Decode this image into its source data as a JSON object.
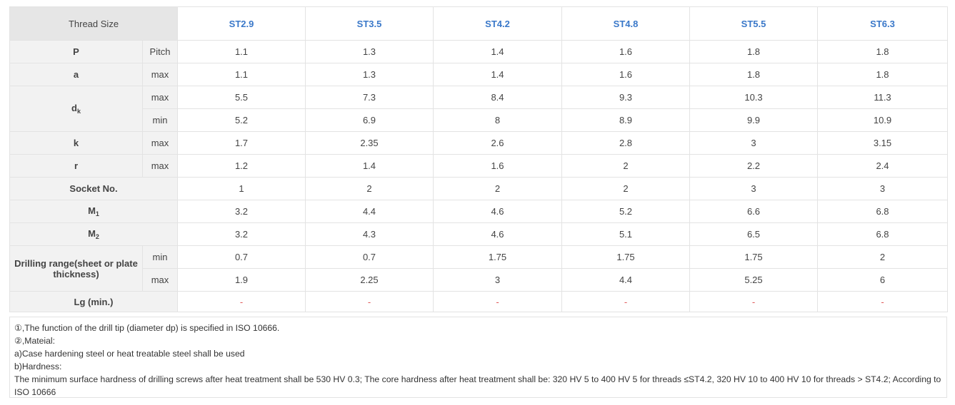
{
  "colors": {
    "header_link": "#3a78c9",
    "dash": "#e05a5a",
    "label_bg": "#f2f2f2",
    "thread_bg": "#e6e6e6",
    "border": "#e3e3e3"
  },
  "header": {
    "thread_size_label": "Thread Size",
    "columns": [
      "ST2.9",
      "ST3.5",
      "ST4.2",
      "ST4.8",
      "ST5.5",
      "ST6.3"
    ]
  },
  "rows": {
    "P": {
      "label": "P",
      "qualifier": "Pitch",
      "values": [
        "1.1",
        "1.3",
        "1.4",
        "1.6",
        "1.8",
        "1.8"
      ]
    },
    "a": {
      "label": "a",
      "qualifier": "max",
      "values": [
        "1.1",
        "1.3",
        "1.4",
        "1.6",
        "1.8",
        "1.8"
      ]
    },
    "dk": {
      "label": "d",
      "sub": "k",
      "max": {
        "qualifier": "max",
        "values": [
          "5.5",
          "7.3",
          "8.4",
          "9.3",
          "10.3",
          "11.3"
        ]
      },
      "min": {
        "qualifier": "min",
        "values": [
          "5.2",
          "6.9",
          "8",
          "8.9",
          "9.9",
          "10.9"
        ]
      }
    },
    "k": {
      "label": "k",
      "qualifier": "max",
      "values": [
        "1.7",
        "2.35",
        "2.6",
        "2.8",
        "3",
        "3.15"
      ]
    },
    "r": {
      "label": "r",
      "qualifier": "max",
      "values": [
        "1.2",
        "1.4",
        "1.6",
        "2",
        "2.2",
        "2.4"
      ]
    },
    "socket": {
      "label": "Socket No.",
      "values": [
        "1",
        "2",
        "2",
        "2",
        "3",
        "3"
      ]
    },
    "m1": {
      "label": "M",
      "sub": "1",
      "values": [
        "3.2",
        "4.4",
        "4.6",
        "5.2",
        "6.6",
        "6.8"
      ]
    },
    "m2": {
      "label": "M",
      "sub": "2",
      "values": [
        "3.2",
        "4.3",
        "4.6",
        "5.1",
        "6.5",
        "6.8"
      ]
    },
    "drill": {
      "label": "Drilling range(sheet or plate thickness)",
      "min": {
        "qualifier": "min",
        "values": [
          "0.7",
          "0.7",
          "1.75",
          "1.75",
          "1.75",
          "2"
        ]
      },
      "max": {
        "qualifier": "max",
        "values": [
          "1.9",
          "2.25",
          "3",
          "4.4",
          "5.25",
          "6"
        ]
      }
    },
    "lg": {
      "label": "Lg (min.)",
      "values": [
        "-",
        "-",
        "-",
        "-",
        "-",
        "-"
      ]
    }
  },
  "notes": [
    "①,The function of the drill tip (diameter dp) is specified in ISO 10666.",
    "②,Mateial:",
    "a)Case hardening steel or heat treatable steel shall be used",
    "b)Hardness:",
    "The minimum surface hardness of drilling screws after heat treatment shall be 530 HV 0.3; The core hardness after heat treatment shall be: 320 HV 5 to 400 HV 5 for threads ≤ST4.2, 320 HV 10 to 400 HV 10 for threads > ST4.2; According to ISO 10666"
  ]
}
